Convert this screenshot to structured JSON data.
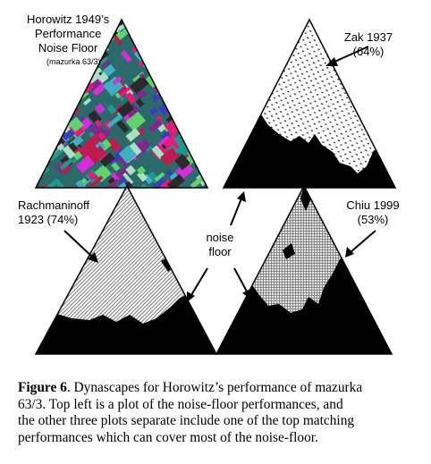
{
  "panels": {
    "top_left": {
      "title_lines": [
        "Horowitz 1949’s",
        "Performance",
        "Noise Floor"
      ],
      "subtitle": "(mazurka 63/3)"
    },
    "top_right": {
      "title": "Zak 1937",
      "percent": "(64%)"
    },
    "bottom_left": {
      "title": "Rachmaninoff",
      "subtitle": "1923  (74%)"
    },
    "bottom_right": {
      "title": "Chiu 1999",
      "percent": "(53%)"
    },
    "center_label_lines": [
      "noise",
      "floor"
    ]
  },
  "caption": {
    "figure_label": "Figure 6",
    "lines": [
      ". Dynascapes for Horowitz’s performance of mazurka",
      "63/3.  Top left is a plot of the noise-floor performances, and",
      "the other three plots separate include one of the top matching",
      "performances which can cover most of the noise-floor."
    ]
  },
  "colors": {
    "mosaic": [
      "#1a9a8a",
      "#e8197a",
      "#d92bd9",
      "#3a3ac8",
      "#5fd46a",
      "#2a2a2a",
      "#a8e0c0",
      "#c01a50",
      "#3fb0c0",
      "#7a2a8a"
    ],
    "noise_floor": "#000000",
    "background": "#ffffff"
  }
}
